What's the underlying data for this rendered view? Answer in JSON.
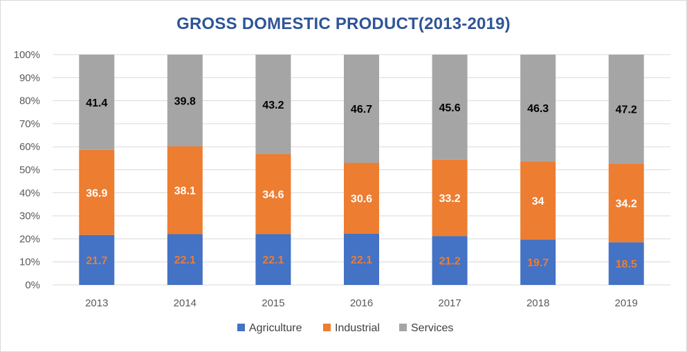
{
  "chart_data": {
    "type": "bar",
    "stacked": true,
    "percent_stacked": true,
    "title": "GROSS DOMESTIC PRODUCT(2013-2019)",
    "categories": [
      "2013",
      "2014",
      "2015",
      "2016",
      "2017",
      "2018",
      "2019"
    ],
    "series": [
      {
        "name": "Agriculture",
        "color": "#4472c4",
        "label_color": "#ed7d31",
        "values": [
          "21.7",
          "22.1",
          "22.1",
          "22.1",
          "21.2",
          "19.7",
          "18.5"
        ]
      },
      {
        "name": "Industrial",
        "color": "#ed7d31",
        "label_color": "#ffffff",
        "values": [
          "36.9",
          "38.1",
          "34.6",
          "30.6",
          "33.2",
          "34",
          "34.2"
        ]
      },
      {
        "name": "Services",
        "color": "#a5a5a5",
        "label_color": "#000000",
        "values": [
          "41.4",
          "39.8",
          "43.2",
          "46.7",
          "45.6",
          "46.3",
          "47.2"
        ]
      }
    ],
    "y_ticks": [
      "0%",
      "10%",
      "20%",
      "30%",
      "40%",
      "50%",
      "60%",
      "70%",
      "80%",
      "90%",
      "100%"
    ],
    "ylim": [
      0,
      100
    ],
    "grid": true,
    "legend_position": "bottom"
  }
}
